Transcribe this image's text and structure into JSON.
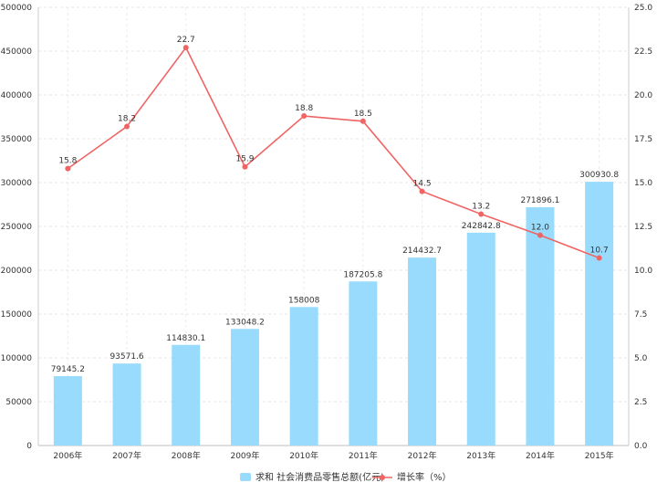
{
  "chart_data": {
    "type": "bar",
    "categories": [
      "2006年",
      "2007年",
      "2008年",
      "2009年",
      "2010年",
      "2011年",
      "2012年",
      "2013年",
      "2014年",
      "2015年"
    ],
    "series": [
      {
        "name": "求和 社会消费品零售总额(亿元)",
        "type": "bar",
        "axis": "left",
        "color": "#99dbfc",
        "values": [
          79145.2,
          93571.6,
          114830.1,
          133048.2,
          158008,
          187205.8,
          214432.7,
          242842.8,
          271896.1,
          300930.8
        ],
        "labels": [
          "79145.2",
          "93571.6",
          "114830.1",
          "133048.2",
          "158008",
          "187205.8",
          "214432.7",
          "242842.8",
          "271896.1",
          "300930.8"
        ]
      },
      {
        "name": "增长率（%）",
        "type": "line",
        "axis": "right",
        "color": "#f06464",
        "values": [
          15.8,
          18.2,
          22.7,
          15.9,
          18.8,
          18.5,
          14.5,
          13.2,
          12.0,
          10.7
        ],
        "labels": [
          "15.8",
          "18.2",
          "22.7",
          "15.9",
          "18.8",
          "18.5",
          "14.5",
          "13.2",
          "12.0",
          "10.7"
        ]
      }
    ],
    "y_left": {
      "ylim": [
        0,
        500000
      ],
      "ticks": [
        "0",
        "50000",
        "100000",
        "150000",
        "200000",
        "250000",
        "300000",
        "350000",
        "400000",
        "450000",
        "500000"
      ]
    },
    "y_right": {
      "ylim": [
        0,
        25
      ],
      "ticks": [
        "0.0",
        "2.5",
        "5.0",
        "7.5",
        "10.0",
        "12.5",
        "15.0",
        "17.5",
        "20.0",
        "22.5",
        "25.0"
      ]
    },
    "title": "",
    "xlabel": "",
    "ylabel": "",
    "grid": true,
    "legend": "bottom-center"
  }
}
